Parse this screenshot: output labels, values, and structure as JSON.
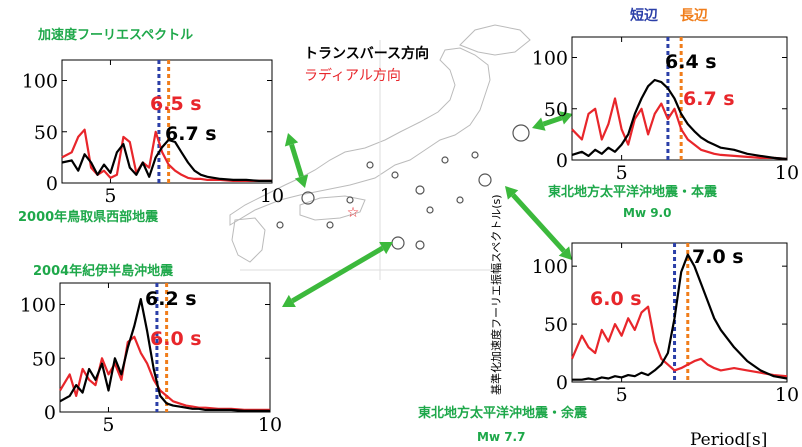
{
  "figure": {
    "legend": {
      "transverse_label": "トランスバース方向",
      "radial_label": "ラディアル方向",
      "transverse_color": "#000000",
      "radial_color": "#e8262b"
    },
    "top_left_heading": "加速度フーリエスペクトル",
    "period_axis_label": "Period[s]",
    "ylabel": "基準化加速度フーリエ振幅スペクトル(s)",
    "short_side_label": "短辺",
    "long_side_label": "長辺",
    "short_side_color": "#2b3fa8",
    "long_side_color": "#f07d1a",
    "event_label_color": "#1ea84a",
    "arrow_color": "#3cb93c",
    "map_epicenter_color": "#e8262b"
  },
  "chart_data": [
    {
      "type": "line",
      "event": "2000年鳥取県西部地震",
      "magnitude": "",
      "xlim": [
        3.5,
        10
      ],
      "ylim": [
        0,
        120
      ],
      "x_ticks": [
        "5",
        "10"
      ],
      "y_ticks": [
        "0",
        "50",
        "100"
      ],
      "short_side_period": 6.5,
      "long_side_period": 6.8,
      "annotations": [
        {
          "text": "6.5 s",
          "color": "#e8262b"
        },
        {
          "text": "6.7 s",
          "color": "#000000"
        }
      ],
      "series": [
        {
          "color": "#000000",
          "x": [
            3.5,
            3.8,
            4.0,
            4.2,
            4.4,
            4.6,
            4.8,
            5.0,
            5.2,
            5.4,
            5.6,
            5.8,
            6.0,
            6.2,
            6.4,
            6.6,
            6.8,
            7.0,
            7.2,
            7.4,
            7.6,
            7.8,
            8.0,
            8.4,
            8.8,
            9.2,
            9.6,
            10.0
          ],
          "y": [
            20,
            22,
            12,
            28,
            20,
            8,
            18,
            10,
            30,
            38,
            15,
            8,
            20,
            6,
            25,
            35,
            42,
            40,
            30,
            20,
            12,
            8,
            6,
            4,
            3,
            3,
            2,
            2
          ]
        },
        {
          "color": "#e8262b",
          "x": [
            3.5,
            3.8,
            4.0,
            4.2,
            4.4,
            4.6,
            4.8,
            5.0,
            5.2,
            5.4,
            5.6,
            5.8,
            6.0,
            6.2,
            6.4,
            6.6,
            6.8,
            7.0,
            7.2,
            7.4,
            7.6,
            7.8,
            8.0,
            8.4,
            8.8,
            9.2,
            9.6,
            10.0
          ],
          "y": [
            25,
            30,
            45,
            52,
            15,
            8,
            12,
            5,
            8,
            45,
            40,
            10,
            20,
            15,
            50,
            30,
            18,
            12,
            8,
            5,
            4,
            4,
            3,
            3,
            2,
            2,
            2,
            2
          ]
        }
      ]
    },
    {
      "type": "line",
      "event": "東北地方太平洋沖地震・本震",
      "magnitude": "Mw 9.0",
      "xlim": [
        3.5,
        10
      ],
      "ylim": [
        0,
        120
      ],
      "x_ticks": [
        "5",
        "10"
      ],
      "y_ticks": [
        "0",
        "50",
        "100"
      ],
      "short_side_period": 6.4,
      "long_side_period": 6.8,
      "annotations": [
        {
          "text": "6.4 s",
          "color": "#000000"
        },
        {
          "text": "6.7 s",
          "color": "#e8262b"
        }
      ],
      "series": [
        {
          "color": "#000000",
          "x": [
            3.5,
            3.8,
            4.0,
            4.2,
            4.4,
            4.6,
            4.8,
            5.0,
            5.2,
            5.4,
            5.6,
            5.8,
            6.0,
            6.2,
            6.4,
            6.6,
            6.8,
            7.0,
            7.2,
            7.4,
            7.6,
            7.8,
            8.0,
            8.4,
            8.8,
            9.2,
            9.6,
            10.0
          ],
          "y": [
            5,
            8,
            4,
            10,
            6,
            12,
            8,
            15,
            25,
            45,
            60,
            72,
            78,
            76,
            70,
            60,
            45,
            35,
            28,
            22,
            18,
            15,
            12,
            10,
            6,
            4,
            2,
            1
          ]
        },
        {
          "color": "#e8262b",
          "x": [
            3.5,
            3.8,
            4.0,
            4.2,
            4.4,
            4.6,
            4.8,
            5.0,
            5.2,
            5.4,
            5.6,
            5.8,
            6.0,
            6.2,
            6.4,
            6.6,
            6.8,
            7.0,
            7.2,
            7.4,
            7.6,
            7.8,
            8.0,
            8.4,
            8.8,
            9.2,
            9.6,
            10.0
          ],
          "y": [
            30,
            20,
            45,
            50,
            20,
            35,
            60,
            30,
            15,
            40,
            50,
            25,
            45,
            55,
            40,
            50,
            30,
            20,
            15,
            10,
            8,
            6,
            5,
            4,
            3,
            2,
            2,
            1
          ]
        }
      ]
    },
    {
      "type": "line",
      "event": "2004年紀伊半島沖地震",
      "magnitude": "",
      "xlim": [
        3.5,
        10
      ],
      "ylim": [
        0,
        120
      ],
      "x_ticks": [
        "5",
        "10"
      ],
      "y_ticks": [
        "0",
        "50",
        "100"
      ],
      "short_side_period": 6.5,
      "long_side_period": 6.8,
      "annotations": [
        {
          "text": "6.2 s",
          "color": "#000000"
        },
        {
          "text": "6.0 s",
          "color": "#e8262b"
        }
      ],
      "series": [
        {
          "color": "#000000",
          "x": [
            3.5,
            3.8,
            4.0,
            4.2,
            4.4,
            4.6,
            4.8,
            5.0,
            5.2,
            5.4,
            5.6,
            5.8,
            6.0,
            6.2,
            6.4,
            6.6,
            6.8,
            7.0,
            7.2,
            7.4,
            7.6,
            7.8,
            8.0,
            8.4,
            8.8,
            9.2,
            9.6,
            10.0
          ],
          "y": [
            10,
            15,
            25,
            18,
            40,
            30,
            45,
            20,
            50,
            35,
            60,
            80,
            105,
            75,
            40,
            15,
            8,
            6,
            5,
            4,
            3,
            3,
            2,
            2,
            2,
            1,
            1,
            1
          ]
        },
        {
          "color": "#e8262b",
          "x": [
            3.5,
            3.8,
            4.0,
            4.2,
            4.4,
            4.6,
            4.8,
            5.0,
            5.2,
            5.4,
            5.6,
            5.8,
            6.0,
            6.2,
            6.4,
            6.6,
            6.8,
            7.0,
            7.2,
            7.4,
            7.6,
            7.8,
            8.0,
            8.4,
            8.8,
            9.2,
            9.6,
            10.0
          ],
          "y": [
            20,
            35,
            15,
            40,
            30,
            25,
            50,
            35,
            45,
            30,
            65,
            70,
            55,
            45,
            30,
            20,
            15,
            10,
            8,
            6,
            5,
            4,
            4,
            3,
            3,
            2,
            2,
            2
          ]
        }
      ]
    },
    {
      "type": "line",
      "event": "東北地方太平洋沖地震・余震",
      "magnitude": "Mw 7.7",
      "xlim": [
        3.5,
        10
      ],
      "ylim": [
        0,
        120
      ],
      "x_ticks": [
        "5",
        "10"
      ],
      "y_ticks": [
        "0",
        "50",
        "100"
      ],
      "short_side_period": 6.6,
      "long_side_period": 7.0,
      "annotations": [
        {
          "text": "7.0 s",
          "color": "#000000"
        },
        {
          "text": "6.0 s",
          "color": "#e8262b"
        }
      ],
      "series": [
        {
          "color": "#000000",
          "x": [
            3.5,
            3.8,
            4.0,
            4.2,
            4.4,
            4.6,
            4.8,
            5.0,
            5.2,
            5.4,
            5.6,
            5.8,
            6.0,
            6.2,
            6.4,
            6.6,
            6.8,
            7.0,
            7.2,
            7.4,
            7.6,
            7.8,
            8.0,
            8.4,
            8.8,
            9.2,
            9.6,
            10.0
          ],
          "y": [
            2,
            2,
            3,
            2,
            4,
            3,
            5,
            4,
            6,
            5,
            8,
            6,
            10,
            15,
            25,
            55,
            95,
            110,
            100,
            85,
            70,
            55,
            45,
            30,
            18,
            10,
            5,
            3
          ]
        },
        {
          "color": "#e8262b",
          "x": [
            3.5,
            3.8,
            4.0,
            4.2,
            4.4,
            4.6,
            4.8,
            5.0,
            5.2,
            5.4,
            5.6,
            5.8,
            6.0,
            6.2,
            6.4,
            6.6,
            6.8,
            7.0,
            7.2,
            7.4,
            7.6,
            7.8,
            8.0,
            8.4,
            8.8,
            9.2,
            9.6,
            10.0
          ],
          "y": [
            20,
            40,
            30,
            25,
            45,
            35,
            50,
            40,
            55,
            45,
            60,
            65,
            35,
            20,
            15,
            10,
            12,
            15,
            18,
            20,
            15,
            12,
            10,
            12,
            10,
            8,
            6,
            5
          ]
        }
      ]
    }
  ]
}
